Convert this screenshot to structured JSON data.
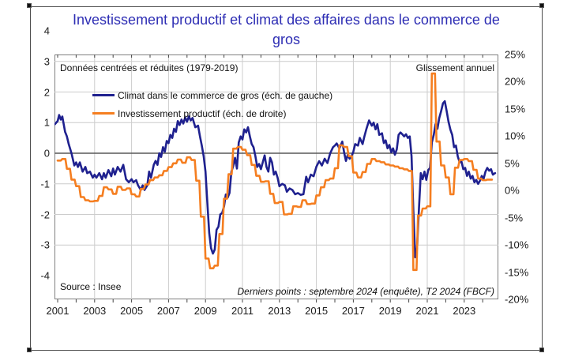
{
  "figure": {
    "title": "Investissement productif et climat des affaires dans le commerce de gros",
    "title_color": "#2e2eb4",
    "background": "#ffffff",
    "border_color": "#4d4d4d"
  },
  "annotations": {
    "top_left": "Données centrées et réduites (1979-2019)",
    "top_right": "Glissement annuel",
    "bottom_left": "Source : Insee",
    "bottom_right": "Derniers points : septembre 2024 (enquête), T2 2024 (FBCF)"
  },
  "legend": [
    {
      "label": "Climat dans le commerce de gros (éch. de gauche)",
      "color": "#1f218f"
    },
    {
      "label": "Investissement productif (éch. de droite)",
      "color": "#f57e20"
    }
  ],
  "chart_data": {
    "type": "line",
    "grid": true,
    "colors": {
      "grid": "#cccccc",
      "zero_line": "#595959",
      "plot_border": "#7f7f7f",
      "tick": "#444444"
    },
    "x_axis": {
      "min": 2000.85,
      "max": 2024.9,
      "label_years": [
        2001,
        2003,
        2005,
        2007,
        2009,
        2011,
        2013,
        2015,
        2017,
        2019,
        2021,
        2023
      ],
      "grid_years": [
        2003,
        2005,
        2007,
        2009,
        2011,
        2013,
        2015,
        2017,
        2019,
        2021,
        2023
      ],
      "minor_tick_years_start": 2001,
      "minor_tick_years_end": 2024
    },
    "left_axis": {
      "min": -4,
      "max": 4,
      "tick_values": [
        4,
        3,
        2,
        1,
        0,
        -1,
        -2,
        -3,
        -4
      ],
      "tick_labels": [
        "4",
        "3",
        "2",
        "1",
        "0",
        "-1",
        "-2",
        "-3",
        "-4"
      ],
      "grid_values": [
        3,
        2,
        1,
        -1,
        -2,
        -3
      ],
      "zero_value": 0
    },
    "right_axis": {
      "min": -20,
      "max": 25,
      "tick_values": [
        25,
        20,
        15,
        10,
        5,
        0,
        -5,
        -10,
        -15,
        -20
      ],
      "tick_labels": [
        "25%",
        "20%",
        "15%",
        "10%",
        "5%",
        "0%",
        "-5%",
        "-10%",
        "-15%",
        "-20%"
      ]
    },
    "series": [
      {
        "name": "Climat dans le commerce de gros",
        "axis": "left",
        "color": "#1f218f",
        "width": 2.6,
        "data": [
          [
            2000.85,
            0.95
          ],
          [
            2001.0,
            1.05
          ],
          [
            2001.08,
            1.25
          ],
          [
            2001.17,
            1.1
          ],
          [
            2001.25,
            1.2
          ],
          [
            2001.4,
            0.7
          ],
          [
            2001.5,
            0.55
          ],
          [
            2001.6,
            0.3
          ],
          [
            2001.75,
            0.0
          ],
          [
            2001.9,
            -0.4
          ],
          [
            2002.0,
            -0.3
          ],
          [
            2002.1,
            -0.45
          ],
          [
            2002.2,
            -0.3
          ],
          [
            2002.35,
            -0.6
          ],
          [
            2002.5,
            -0.45
          ],
          [
            2002.6,
            -0.65
          ],
          [
            2002.75,
            -0.6
          ],
          [
            2002.9,
            -0.8
          ],
          [
            2003.0,
            -0.7
          ],
          [
            2003.1,
            -0.8
          ],
          [
            2003.25,
            -0.65
          ],
          [
            2003.4,
            -0.85
          ],
          [
            2003.5,
            -0.65
          ],
          [
            2003.6,
            -0.8
          ],
          [
            2003.75,
            -0.55
          ],
          [
            2003.9,
            -0.75
          ],
          [
            2004.0,
            -0.5
          ],
          [
            2004.1,
            -0.7
          ],
          [
            2004.25,
            -0.45
          ],
          [
            2004.4,
            -0.6
          ],
          [
            2004.55,
            -0.38
          ],
          [
            2004.7,
            -0.85
          ],
          [
            2004.85,
            -0.95
          ],
          [
            2005.0,
            -0.85
          ],
          [
            2005.1,
            -0.95
          ],
          [
            2005.25,
            -0.88
          ],
          [
            2005.35,
            -1.05
          ],
          [
            2005.5,
            -1.2
          ],
          [
            2005.6,
            -1.05
          ],
          [
            2005.7,
            -1.2
          ],
          [
            2005.85,
            -1.05
          ],
          [
            2005.95,
            -0.6
          ],
          [
            2006.05,
            -0.8
          ],
          [
            2006.2,
            -0.38
          ],
          [
            2006.3,
            -0.25
          ],
          [
            2006.4,
            -0.38
          ],
          [
            2006.5,
            0.0
          ],
          [
            2006.6,
            -0.12
          ],
          [
            2006.7,
            0.2
          ],
          [
            2006.8,
            0.05
          ],
          [
            2006.9,
            0.4
          ],
          [
            2007.0,
            0.33
          ],
          [
            2007.1,
            0.6
          ],
          [
            2007.2,
            0.5
          ],
          [
            2007.3,
            0.8
          ],
          [
            2007.4,
            0.7
          ],
          [
            2007.5,
            1.05
          ],
          [
            2007.6,
            0.92
          ],
          [
            2007.7,
            1.1
          ],
          [
            2007.8,
            0.97
          ],
          [
            2007.9,
            1.17
          ],
          [
            2008.0,
            1.03
          ],
          [
            2008.1,
            1.2
          ],
          [
            2008.2,
            1.07
          ],
          [
            2008.3,
            1.15
          ],
          [
            2008.45,
            0.85
          ],
          [
            2008.6,
            0.9
          ],
          [
            2008.7,
            0.55
          ],
          [
            2008.8,
            0.25
          ],
          [
            2008.9,
            -0.1
          ],
          [
            2009.0,
            -0.6
          ],
          [
            2009.1,
            -1.6
          ],
          [
            2009.2,
            -2.6
          ],
          [
            2009.3,
            -3.1
          ],
          [
            2009.4,
            -3.28
          ],
          [
            2009.5,
            -3.15
          ],
          [
            2009.6,
            -2.5
          ],
          [
            2009.7,
            -2.4
          ],
          [
            2009.8,
            -2.0
          ],
          [
            2009.9,
            -1.95
          ],
          [
            2010.0,
            -1.75
          ],
          [
            2010.1,
            -1.35
          ],
          [
            2010.2,
            -1.45
          ],
          [
            2010.3,
            -1.3
          ],
          [
            2010.4,
            -0.6
          ],
          [
            2010.5,
            -0.42
          ],
          [
            2010.6,
            -0.15
          ],
          [
            2010.7,
            -0.5
          ],
          [
            2010.8,
            0.35
          ],
          [
            2010.9,
            0.55
          ],
          [
            2011.0,
            0.45
          ],
          [
            2011.1,
            0.78
          ],
          [
            2011.2,
            0.68
          ],
          [
            2011.3,
            0.85
          ],
          [
            2011.4,
            0.55
          ],
          [
            2011.5,
            0.3
          ],
          [
            2011.6,
            0.2
          ],
          [
            2011.7,
            -0.1
          ],
          [
            2011.8,
            -0.45
          ],
          [
            2011.9,
            -0.35
          ],
          [
            2012.0,
            -0.52
          ],
          [
            2012.1,
            -0.3
          ],
          [
            2012.2,
            -0.07
          ],
          [
            2012.3,
            -0.45
          ],
          [
            2012.4,
            -0.6
          ],
          [
            2012.5,
            -0.15
          ],
          [
            2012.6,
            -0.3
          ],
          [
            2012.7,
            -0.7
          ],
          [
            2012.8,
            -0.6
          ],
          [
            2012.9,
            -0.8
          ],
          [
            2013.0,
            -1.08
          ],
          [
            2013.15,
            -1.0
          ],
          [
            2013.3,
            -1.05
          ],
          [
            2013.4,
            -1.26
          ],
          [
            2013.55,
            -1.15
          ],
          [
            2013.7,
            -1.2
          ],
          [
            2013.85,
            -1.34
          ],
          [
            2014.0,
            -1.3
          ],
          [
            2014.15,
            -1.36
          ],
          [
            2014.3,
            -1.34
          ],
          [
            2014.45,
            -0.77
          ],
          [
            2014.55,
            -0.95
          ],
          [
            2014.7,
            -0.7
          ],
          [
            2014.85,
            -0.75
          ],
          [
            2015.0,
            -0.44
          ],
          [
            2015.15,
            -0.26
          ],
          [
            2015.3,
            -0.4
          ],
          [
            2015.45,
            -0.18
          ],
          [
            2015.6,
            -0.32
          ],
          [
            2015.75,
            0.0
          ],
          [
            2015.9,
            0.2
          ],
          [
            2016.0,
            0.25
          ],
          [
            2016.1,
            0.32
          ],
          [
            2016.25,
            0.16
          ],
          [
            2016.4,
            0.38
          ],
          [
            2016.5,
            0.03
          ],
          [
            2016.6,
            -0.25
          ],
          [
            2016.7,
            -0.05
          ],
          [
            2016.8,
            -0.18
          ],
          [
            2016.9,
            -0.1
          ],
          [
            2017.0,
            0.05
          ],
          [
            2017.1,
            0.3
          ],
          [
            2017.25,
            0.25
          ],
          [
            2017.35,
            0.5
          ],
          [
            2017.5,
            0.3
          ],
          [
            2017.6,
            0.55
          ],
          [
            2017.7,
            0.78
          ],
          [
            2017.85,
            1.07
          ],
          [
            2018.0,
            0.9
          ],
          [
            2018.1,
            1.0
          ],
          [
            2018.2,
            0.78
          ],
          [
            2018.3,
            0.95
          ],
          [
            2018.4,
            0.6
          ],
          [
            2018.55,
            0.65
          ],
          [
            2018.65,
            0.33
          ],
          [
            2018.75,
            0.42
          ],
          [
            2018.85,
            0.16
          ],
          [
            2018.95,
            0.27
          ],
          [
            2019.05,
            0.03
          ],
          [
            2019.15,
            0.16
          ],
          [
            2019.25,
            -0.05
          ],
          [
            2019.35,
            0.13
          ],
          [
            2019.45,
            0.6
          ],
          [
            2019.55,
            0.68
          ],
          [
            2019.65,
            0.62
          ],
          [
            2019.75,
            0.55
          ],
          [
            2019.85,
            0.62
          ],
          [
            2019.95,
            0.5
          ],
          [
            2020.05,
            0.55
          ],
          [
            2020.15,
            -0.1
          ],
          [
            2020.25,
            -1.9
          ],
          [
            2020.35,
            -3.4
          ],
          [
            2020.45,
            -3.1
          ],
          [
            2020.55,
            -1.8
          ],
          [
            2020.65,
            -0.65
          ],
          [
            2020.75,
            -0.85
          ],
          [
            2020.85,
            -0.6
          ],
          [
            2020.95,
            -0.87
          ],
          [
            2021.05,
            -0.55
          ],
          [
            2021.15,
            -0.48
          ],
          [
            2021.25,
            0.35
          ],
          [
            2021.35,
            0.6
          ],
          [
            2021.45,
            0.95
          ],
          [
            2021.55,
            0.8
          ],
          [
            2021.65,
            1.15
          ],
          [
            2021.75,
            1.37
          ],
          [
            2021.85,
            1.63
          ],
          [
            2021.95,
            1.7
          ],
          [
            2022.05,
            1.37
          ],
          [
            2022.15,
            1.03
          ],
          [
            2022.25,
            0.77
          ],
          [
            2022.35,
            0.6
          ],
          [
            2022.45,
            0.2
          ],
          [
            2022.55,
            0.25
          ],
          [
            2022.65,
            -0.1
          ],
          [
            2022.75,
            -0.3
          ],
          [
            2022.85,
            -0.27
          ],
          [
            2022.95,
            -0.52
          ],
          [
            2023.05,
            -0.48
          ],
          [
            2023.15,
            -0.74
          ],
          [
            2023.25,
            -0.6
          ],
          [
            2023.35,
            -0.83
          ],
          [
            2023.45,
            -0.74
          ],
          [
            2023.55,
            -0.95
          ],
          [
            2023.65,
            -0.87
          ],
          [
            2023.75,
            -1.0
          ],
          [
            2023.85,
            -0.9
          ],
          [
            2023.95,
            -0.74
          ],
          [
            2024.05,
            -0.83
          ],
          [
            2024.15,
            -0.6
          ],
          [
            2024.25,
            -0.48
          ],
          [
            2024.35,
            -0.57
          ],
          [
            2024.45,
            -0.52
          ],
          [
            2024.55,
            -0.7
          ],
          [
            2024.67,
            -0.65
          ]
        ]
      },
      {
        "name": "Investissement productif",
        "axis": "right",
        "color": "#f57e20",
        "width": 2.6,
        "quarterly": true,
        "start_year": 2001,
        "values": [
          5.5,
          5.8,
          4.0,
          2.0,
          0.8,
          -1.2,
          -1.8,
          -2.0,
          -1.9,
          -1.0,
          0.6,
          0.2,
          -0.6,
          0.7,
          0.1,
          0.4,
          -0.7,
          -1.1,
          0.3,
          1.1,
          1.9,
          2.4,
          2.8,
          3.6,
          4.3,
          5.0,
          5.7,
          5.1,
          6.1,
          5.6,
          1.8,
          -4.8,
          -12.5,
          -14.3,
          -13.8,
          -8.0,
          -1.5,
          3.0,
          7.7,
          8.0,
          7.5,
          6.5,
          4.7,
          2.7,
          1.6,
          1.7,
          -0.6,
          -2.3,
          -2.1,
          -4.4,
          -4.3,
          -2.9,
          -3.0,
          -1.8,
          -2.5,
          -2.4,
          -0.9,
          0.6,
          1.9,
          2.2,
          4.1,
          8.3,
          8.0,
          6.3,
          3.3,
          2.4,
          3.4,
          4.9,
          5.8,
          5.4,
          5.2,
          4.8,
          4.6,
          4.4,
          4.1,
          3.9,
          3.6,
          -14.6,
          -4.6,
          -3.3,
          -2.9,
          21.5,
          9.0,
          4.6,
          2.4,
          -0.7,
          4.2,
          5.6,
          5.8,
          5.4,
          3.8,
          2.2,
          1.9,
          2.0
        ]
      }
    ]
  }
}
